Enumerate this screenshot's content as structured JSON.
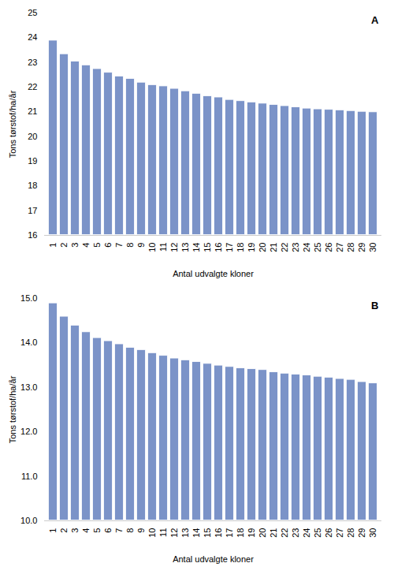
{
  "chart_data": [
    {
      "type": "bar",
      "annotation": "A",
      "categories": [
        "1",
        "2",
        "3",
        "4",
        "5",
        "6",
        "7",
        "8",
        "9",
        "10",
        "11",
        "12",
        "13",
        "14",
        "15",
        "16",
        "17",
        "18",
        "19",
        "20",
        "21",
        "22",
        "23",
        "24",
        "25",
        "26",
        "27",
        "28",
        "29",
        "30"
      ],
      "values": [
        23.9,
        23.35,
        23.05,
        22.9,
        22.75,
        22.6,
        22.45,
        22.35,
        22.2,
        22.1,
        22.05,
        21.95,
        21.85,
        21.75,
        21.65,
        21.6,
        21.5,
        21.45,
        21.4,
        21.35,
        21.3,
        21.25,
        21.2,
        21.15,
        21.12,
        21.1,
        21.08,
        21.05,
        21.02,
        21.0
      ],
      "color": "#7B93C8",
      "ylim": [
        16,
        25
      ],
      "yticks": [
        16,
        17,
        18,
        19,
        20,
        21,
        22,
        23,
        24,
        25
      ],
      "ylabel": "Tons tørstof/ha/år",
      "xlabel": "Antal udvalgte kloner",
      "grid": false
    },
    {
      "type": "bar",
      "annotation": "B",
      "categories": [
        "1",
        "2",
        "3",
        "4",
        "5",
        "6",
        "7",
        "8",
        "9",
        "10",
        "11",
        "12",
        "13",
        "14",
        "15",
        "16",
        "17",
        "18",
        "19",
        "20",
        "21",
        "22",
        "23",
        "24",
        "25",
        "26",
        "27",
        "28",
        "29",
        "30"
      ],
      "values": [
        14.9,
        14.6,
        14.4,
        14.25,
        14.12,
        14.05,
        13.98,
        13.9,
        13.85,
        13.78,
        13.72,
        13.66,
        13.62,
        13.58,
        13.54,
        13.5,
        13.47,
        13.44,
        13.42,
        13.4,
        13.35,
        13.32,
        13.3,
        13.28,
        13.25,
        13.23,
        13.2,
        13.18,
        13.13,
        13.1
      ],
      "color": "#7B93C8",
      "ylim": [
        10,
        15
      ],
      "yticks": [
        10,
        11,
        12,
        13,
        14,
        15
      ],
      "ylabel": "Tons tørstof/ha/år",
      "xlabel": "Antal udvalgte kloner",
      "grid": false
    }
  ]
}
